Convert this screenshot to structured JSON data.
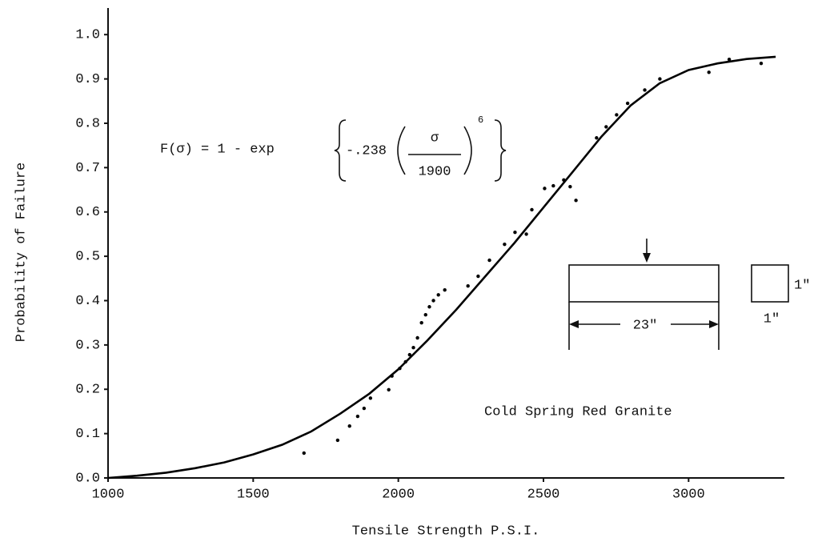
{
  "chart_data": {
    "type": "scatter",
    "x_label": "Tensile Strength  P.S.I.",
    "y_label": "Probability of Failure",
    "xlim": [
      1000,
      3330
    ],
    "ylim": [
      0,
      1.06
    ],
    "xticks": [
      1000,
      1500,
      2000,
      2500,
      3000
    ],
    "yticks": [
      {
        "value": 0,
        "label": "0.0"
      },
      0.1,
      0.2,
      0.3,
      0.4,
      0.5,
      0.6,
      0.7,
      0.8,
      0.9,
      {
        "value": 1,
        "label": "1.0"
      }
    ],
    "series": [
      {
        "type": "scatter",
        "color": "#000000",
        "x": [
          1675,
          1791,
          1832,
          1860,
          1882,
          1904,
          1967,
          1978,
          2005,
          2025,
          2039,
          2052,
          2066,
          2080,
          2094,
          2107,
          2121,
          2138,
          2160,
          2240,
          2275,
          2314,
          2366,
          2402,
          2441,
          2460,
          2504,
          2534,
          2570,
          2592,
          2612,
          2683,
          2716,
          2752,
          2790,
          2849,
          2901,
          3070,
          3140,
          3250
        ],
        "values": [
          0.056,
          0.085,
          0.117,
          0.139,
          0.157,
          0.18,
          0.199,
          0.23,
          0.247,
          0.262,
          0.278,
          0.294,
          0.316,
          0.35,
          0.368,
          0.386,
          0.4,
          0.413,
          0.424,
          0.433,
          0.455,
          0.491,
          0.527,
          0.554,
          0.55,
          0.605,
          0.653,
          0.659,
          0.672,
          0.657,
          0.626,
          0.767,
          0.792,
          0.819,
          0.845,
          0.875,
          0.9,
          0.915,
          0.944,
          0.935
        ]
      },
      {
        "type": "line",
        "color": "#000000",
        "x": [
          1000,
          1100,
          1200,
          1300,
          1400,
          1500,
          1600,
          1700,
          1800,
          1900,
          2000,
          2100,
          2200,
          2300,
          2400,
          2500,
          2600,
          2700,
          2800,
          2900,
          3000,
          3100,
          3200,
          3300
        ],
        "values": [
          0,
          0.005,
          0.012,
          0.022,
          0.035,
          0.053,
          0.075,
          0.105,
          0.145,
          0.19,
          0.245,
          0.31,
          0.38,
          0.455,
          0.53,
          0.61,
          0.69,
          0.77,
          0.84,
          0.89,
          0.92,
          0.935,
          0.945,
          0.95
        ]
      }
    ],
    "annotations": {
      "formula": {
        "lhs": "F(σ) = 1 - exp",
        "coef": "-.238",
        "numerator": "σ",
        "denominator": "1900",
        "exponent": "6"
      },
      "label": "Cold Spring Red Granite",
      "beam_length": "23\"",
      "section_height": "1\"",
      "section_width": "1\""
    }
  }
}
